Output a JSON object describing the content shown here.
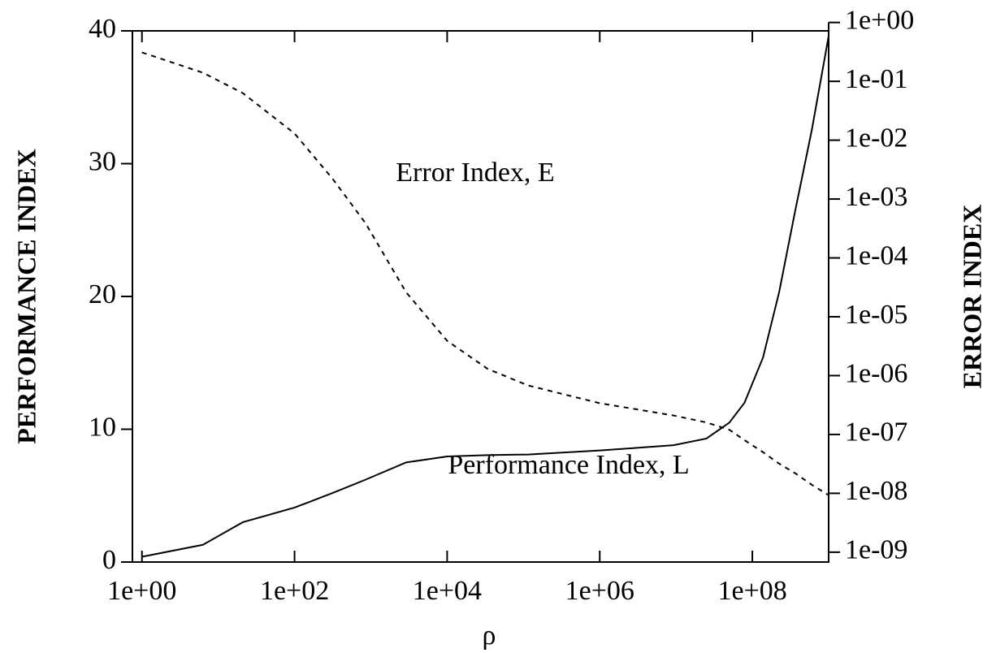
{
  "chart_data": {
    "type": "line",
    "x_label": "ρ",
    "y_label": "PERFORMANCE INDEX",
    "y2_label": "ERROR INDEX",
    "annotations": [
      "Error Index, E",
      "Performance Index, L"
    ],
    "x": [
      1,
      6.3,
      21,
      100,
      316,
      850,
      2900,
      10000,
      34000,
      115000,
      1000000,
      9300000,
      25000000,
      50000000,
      79000000,
      138000000,
      224000000,
      363000000,
      600000000,
      1000000000
    ],
    "series": [
      {
        "name": "Performance Index, L",
        "color": "#000000",
        "dash": "solid",
        "values": [
          0.4,
          1.3,
          3.0,
          4.1,
          5.2,
          6.2,
          7.5,
          7.95,
          8.05,
          8.1,
          8.4,
          8.8,
          9.3,
          10.5,
          12,
          15.4,
          20.3,
          26.4,
          32.5,
          39.6
        ]
      },
      {
        "name": "Error Index, E",
        "color": "#000000",
        "dash": "dashed",
        "axis": "y2",
        "values": [
          0.31,
          0.14,
          0.063,
          0.013,
          0.0022,
          0.00039,
          2.6e-05,
          3.9e-06,
          1.3e-06,
          6.8e-07,
          3.4e-07,
          2.1e-07,
          1.6e-07,
          1.2e-07,
          8e-08,
          5e-08,
          3.2e-08,
          2.2e-08,
          1.4e-08,
          9.3e-09
        ]
      }
    ],
    "xscale": "log",
    "xlim": [
      0.75,
      1000000000
    ],
    "xticks": [
      {
        "value": 1,
        "label": "1e+00"
      },
      {
        "value": 100,
        "label": "1e+02"
      },
      {
        "value": 10000,
        "label": "1e+04"
      },
      {
        "value": 1000000,
        "label": "1e+06"
      },
      {
        "value": 100000000,
        "label": "1e+08"
      }
    ],
    "ylim": [
      0,
      40
    ],
    "yticks": [
      0,
      10,
      20,
      30,
      40
    ],
    "y2scale": "log",
    "y2lim": [
      6.8e-10,
      0.72
    ],
    "y2ticks": [
      {
        "value": 1,
        "label": "1e+00"
      },
      {
        "value": 0.1,
        "label": "1e-01"
      },
      {
        "value": 0.01,
        "label": "1e-02"
      },
      {
        "value": 0.001,
        "label": "1e-03"
      },
      {
        "value": 0.0001,
        "label": "1e-04"
      },
      {
        "value": 1e-05,
        "label": "1e-05"
      },
      {
        "value": 1e-06,
        "label": "1e-06"
      },
      {
        "value": 1e-07,
        "label": "1e-07"
      },
      {
        "value": 1e-08,
        "label": "1e-08"
      },
      {
        "value": 1e-09,
        "label": "1e-09"
      }
    ],
    "grid": false
  }
}
